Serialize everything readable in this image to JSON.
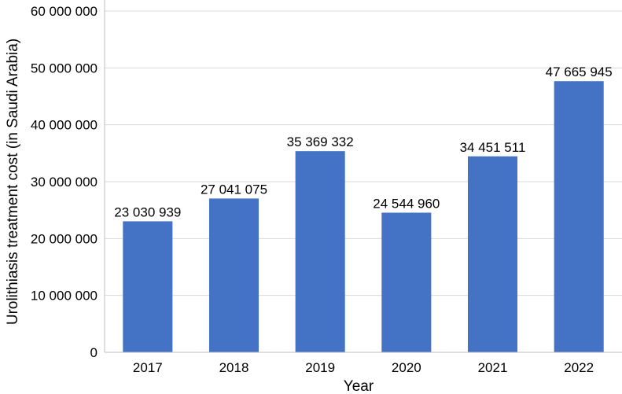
{
  "chart_data": {
    "type": "bar",
    "categories": [
      "2017",
      "2018",
      "2019",
      "2020",
      "2021",
      "2022"
    ],
    "values": [
      23030939,
      27041075,
      35369332,
      24544960,
      34451511,
      47665945
    ],
    "data_labels": [
      "23 030 939",
      "27 041 075",
      "35 369 332",
      "24 544 960",
      "34 451 511",
      "47 665 945"
    ],
    "title": "",
    "xlabel": "Year",
    "ylabel": "Urolithiasis treatment cost (in Saudi Arabia)",
    "ylim": [
      0,
      60000000
    ],
    "yticks": [
      0,
      10000000,
      20000000,
      30000000,
      40000000,
      50000000,
      60000000
    ],
    "ytick_labels": [
      "0",
      "10 000 000",
      "20 000 000",
      "30 000 000",
      "40 000 000",
      "50 000 000",
      "60 000 000"
    ],
    "grid": "horizontal",
    "legend": "none",
    "bar_color": "#4472c4",
    "grid_color": "#d9d9d9",
    "axis_color": "#bfbfbf"
  }
}
